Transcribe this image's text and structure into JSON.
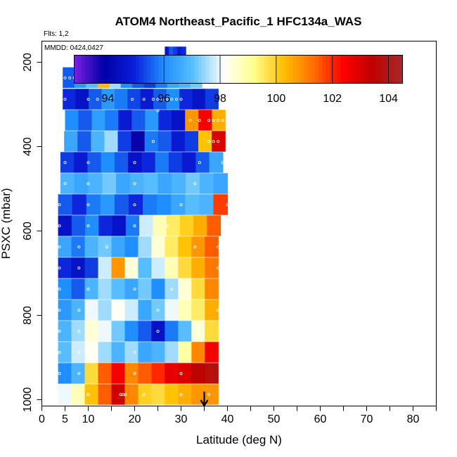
{
  "chart_data": {
    "type": "heatmap",
    "title": "ATOM4 Northeast_Pacific_1 HFC134a_WAS",
    "flights_label": "Flts: 1,2",
    "dates_label": "MMDD: 0424,0427",
    "xlabel": "Latitude (deg N)",
    "ylabel": "PSXC (mbar)",
    "xlim": [
      0,
      85
    ],
    "ylim": [
      1015,
      150
    ],
    "y_reversed": true,
    "x_ticks": [
      0,
      5,
      10,
      20,
      30,
      40,
      50,
      60,
      70,
      80
    ],
    "x_minor_ticks": [
      15,
      25,
      35,
      45,
      55,
      65,
      75,
      85
    ],
    "y_ticks": [
      200,
      400,
      600,
      800,
      1000
    ],
    "colorbar": {
      "min": 92.8,
      "max": 104.5,
      "ticks": [
        94,
        96,
        98,
        100,
        102,
        104
      ],
      "colors": [
        "#7a1fe0",
        "#0000a8",
        "#0a1ed8",
        "#1e8eff",
        "#5ac0ff",
        "#ffffff",
        "#ffff90",
        "#ffc000",
        "#ff7000",
        "#ff0000",
        "#c00000",
        "#a52a2a"
      ]
    },
    "arrow_latitude": 35,
    "bands": [
      {
        "p": 188,
        "lat": [
          26.5,
          31.0
        ],
        "vals": [
          94.6,
          95.5,
          95.2,
          94.8,
          95.0
        ]
      },
      {
        "p": 237,
        "lat": [
          4.5,
          34.5
        ],
        "vals": [
          95.5,
          96.2,
          97.0,
          100.3,
          97.5,
          96.0,
          95.5,
          95.2,
          95.8,
          96.5,
          96.8,
          97.2
        ]
      },
      {
        "p": 288,
        "lat": [
          4.5,
          38.0
        ],
        "vals": [
          95.0,
          94.5,
          95.5,
          96.2,
          95.8,
          95.3,
          94.8,
          95.5,
          96.0,
          95.0,
          94.6,
          95.2
        ]
      },
      {
        "p": 338,
        "lat": [
          5.0,
          39.5
        ],
        "vals": [
          96.0,
          95.5,
          96.3,
          95.8,
          94.8,
          95.5,
          96.2,
          95.0,
          94.5,
          100.8,
          102.5,
          100.5
        ]
      },
      {
        "p": 388,
        "lat": [
          4.8,
          39.5
        ],
        "vals": [
          96.5,
          95.5,
          96.8,
          97.5,
          95.2,
          93.8,
          95.8,
          95.5,
          94.8,
          95.2,
          100.2,
          103.0
        ]
      },
      {
        "p": 438,
        "lat": [
          4.0,
          39.0
        ],
        "vals": [
          95.2,
          94.8,
          95.5,
          96.0,
          95.5,
          94.5,
          95.0,
          95.8,
          95.2,
          94.8,
          95.5,
          96.5
        ]
      },
      {
        "p": 488,
        "lat": [
          4.0,
          40.0
        ],
        "vals": [
          96.8,
          96.5,
          96.8,
          97.2,
          96.5,
          96.8,
          97.0,
          96.5,
          96.8,
          97.2,
          96.8,
          96.5
        ]
      },
      {
        "p": 538,
        "lat": [
          3.5,
          40.0
        ],
        "vals": [
          95.5,
          95.0,
          95.8,
          96.2,
          95.5,
          95.0,
          95.8,
          96.0,
          96.5,
          97.0,
          96.8,
          101.8
        ]
      },
      {
        "p": 588,
        "lat": [
          3.5,
          38.5
        ],
        "vals": [
          94.5,
          95.5,
          96.0,
          95.0,
          94.5,
          95.8,
          97.8,
          98.8,
          99.5,
          100.0,
          100.5,
          101.5
        ]
      },
      {
        "p": 638,
        "lat": [
          3.5,
          38.0
        ],
        "vals": [
          96.5,
          95.8,
          96.8,
          97.2,
          96.5,
          96.0,
          97.5,
          98.5,
          99.5,
          100.2,
          100.8,
          101.5
        ]
      },
      {
        "p": 688,
        "lat": [
          3.5,
          38.0
        ],
        "vals": [
          95.0,
          94.5,
          95.2,
          97.8,
          100.8,
          98.5,
          97.0,
          97.8,
          98.8,
          99.8,
          100.5,
          101.2
        ]
      },
      {
        "p": 738,
        "lat": [
          3.5,
          38.0
        ],
        "vals": [
          96.0,
          95.5,
          96.8,
          97.5,
          97.0,
          96.5,
          97.2,
          96.0,
          97.5,
          98.5,
          99.8,
          101.0
        ]
      },
      {
        "p": 788,
        "lat": [
          3.5,
          38.0
        ],
        "vals": [
          96.2,
          96.8,
          98.0,
          97.5,
          98.2,
          97.8,
          96.5,
          97.2,
          98.0,
          98.8,
          99.5,
          100.5
        ]
      },
      {
        "p": 838,
        "lat": [
          3.5,
          38.0
        ],
        "vals": [
          96.8,
          97.5,
          98.5,
          98.0,
          97.2,
          96.0,
          95.5,
          94.5,
          95.8,
          97.0,
          98.5,
          99.8
        ]
      },
      {
        "p": 888,
        "lat": [
          3.5,
          38.0
        ],
        "vals": [
          97.0,
          97.8,
          98.2,
          97.5,
          96.8,
          97.5,
          96.5,
          96.8,
          97.5,
          99.0,
          101.0,
          102.5
        ]
      },
      {
        "p": 938,
        "lat": [
          3.5,
          38.0
        ],
        "vals": [
          96.0,
          96.8,
          99.8,
          101.5,
          102.5,
          101.0,
          101.5,
          102.0,
          102.8,
          103.0,
          103.5,
          103.8
        ]
      },
      {
        "p": 988,
        "lat": [
          3.5,
          38.0
        ],
        "vals": [
          98.0,
          98.8,
          100.2,
          101.5,
          103.2,
          101.0,
          100.0,
          99.8,
          100.2,
          100.5,
          100.8,
          100.8
        ]
      }
    ],
    "points": [
      [
        27,
        188
      ],
      [
        28,
        188
      ],
      [
        29,
        188
      ],
      [
        30,
        188
      ],
      [
        31,
        188
      ],
      [
        26.5,
        200
      ],
      [
        5,
        237
      ],
      [
        6,
        237
      ],
      [
        7,
        237
      ],
      [
        8,
        237
      ],
      [
        9,
        237
      ],
      [
        12,
        237
      ],
      [
        13,
        237
      ],
      [
        14,
        237
      ],
      [
        15,
        237
      ],
      [
        16,
        237
      ],
      [
        24,
        237
      ],
      [
        5,
        288
      ],
      [
        10,
        288
      ],
      [
        12,
        288
      ],
      [
        15,
        288
      ],
      [
        19.5,
        288
      ],
      [
        22,
        288
      ],
      [
        24,
        288
      ],
      [
        25,
        288
      ],
      [
        26,
        288
      ],
      [
        27,
        288
      ],
      [
        28,
        288
      ],
      [
        29,
        288
      ],
      [
        30,
        288
      ],
      [
        25,
        315
      ],
      [
        32,
        338
      ],
      [
        34,
        338
      ],
      [
        36,
        338
      ],
      [
        37,
        338
      ],
      [
        38,
        338
      ],
      [
        39,
        338
      ],
      [
        24,
        388
      ],
      [
        36,
        388
      ],
      [
        37,
        388
      ],
      [
        38,
        388
      ],
      [
        5,
        438
      ],
      [
        10,
        438
      ],
      [
        20,
        438
      ],
      [
        34,
        438
      ],
      [
        39,
        438
      ],
      [
        5,
        488
      ],
      [
        10,
        488
      ],
      [
        20,
        488
      ],
      [
        33,
        488
      ],
      [
        3.8,
        538
      ],
      [
        10,
        538
      ],
      [
        20,
        538
      ],
      [
        30,
        538
      ],
      [
        40,
        538
      ],
      [
        3.8,
        588
      ],
      [
        10,
        588
      ],
      [
        20,
        588
      ],
      [
        27,
        588
      ],
      [
        3.8,
        638
      ],
      [
        8,
        638
      ],
      [
        14,
        638
      ],
      [
        24,
        638
      ],
      [
        33,
        638
      ],
      [
        38,
        638
      ],
      [
        3.8,
        688
      ],
      [
        8,
        688
      ],
      [
        20,
        688
      ],
      [
        38,
        688
      ],
      [
        3.8,
        738
      ],
      [
        10,
        738
      ],
      [
        20,
        738
      ],
      [
        28,
        738
      ],
      [
        3.8,
        788
      ],
      [
        8,
        788
      ],
      [
        17,
        788
      ],
      [
        25,
        788
      ],
      [
        38,
        788
      ],
      [
        3.8,
        838
      ],
      [
        8,
        838
      ],
      [
        25,
        838
      ],
      [
        3.8,
        888
      ],
      [
        8,
        888
      ],
      [
        20,
        888
      ],
      [
        3.8,
        938
      ],
      [
        8,
        938
      ],
      [
        20,
        938
      ],
      [
        30,
        938
      ],
      [
        3.8,
        988
      ],
      [
        10,
        988
      ],
      [
        17,
        988
      ],
      [
        17.5,
        988
      ],
      [
        18,
        988
      ],
      [
        22,
        988
      ],
      [
        30,
        988
      ],
      [
        36,
        988
      ]
    ]
  }
}
